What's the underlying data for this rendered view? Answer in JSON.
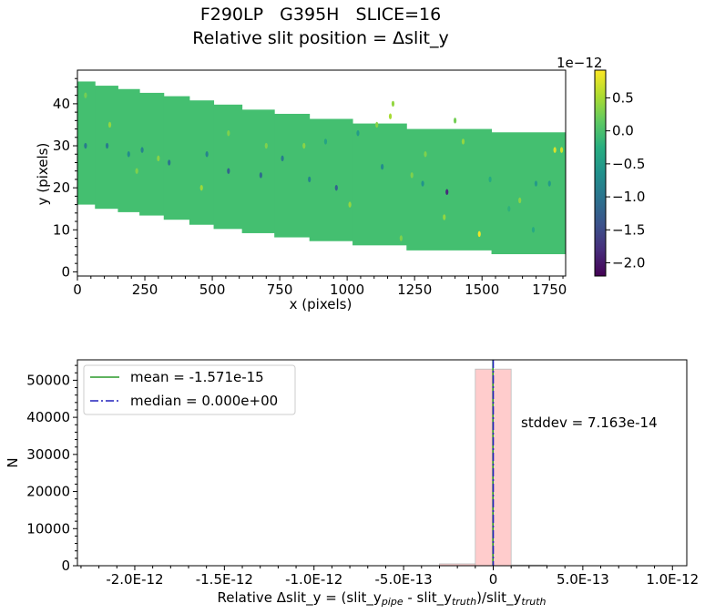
{
  "figure": {
    "title_line1": "F290LP   G395H   SLICE=16",
    "title_line2": "Relative slit position = Δslit_y"
  },
  "chart_data": [
    {
      "type": "heatmap",
      "xlabel": "x (pixels)",
      "ylabel": "y (pixels)",
      "xlim": [
        0,
        1810
      ],
      "ylim": [
        -1,
        48
      ],
      "xticks": [
        0,
        250,
        500,
        750,
        1000,
        1250,
        1500,
        1750
      ],
      "yticks": [
        0,
        10,
        20,
        30,
        40
      ],
      "colormap": "viridis",
      "background_color": "#44bf70",
      "colorbar": {
        "offset_text": "1e−12",
        "range": [
          -2.2,
          0.92
        ],
        "ticks": [
          0.5,
          0.0,
          -0.5,
          -1.0,
          -1.5,
          -2.0
        ],
        "tick_labels": [
          "0.5",
          "0.0",
          "−0.5",
          "−1.0",
          "−1.5",
          "−2.0"
        ]
      },
      "strip_steps": [
        {
          "x0": 0,
          "x1": 65,
          "ytop": 45.3,
          "ybot": 16.0
        },
        {
          "x0": 65,
          "x1": 150,
          "ytop": 44.3,
          "ybot": 15.0
        },
        {
          "x0": 150,
          "x1": 230,
          "ytop": 43.5,
          "ybot": 14.2
        },
        {
          "x0": 230,
          "x1": 320,
          "ytop": 42.6,
          "ybot": 13.4
        },
        {
          "x0": 320,
          "x1": 415,
          "ytop": 41.8,
          "ybot": 12.4
        },
        {
          "x0": 415,
          "x1": 505,
          "ytop": 40.8,
          "ybot": 11.2
        },
        {
          "x0": 505,
          "x1": 610,
          "ytop": 39.8,
          "ybot": 10.2
        },
        {
          "x0": 610,
          "x1": 730,
          "ytop": 38.6,
          "ybot": 9.2
        },
        {
          "x0": 730,
          "x1": 860,
          "ytop": 37.6,
          "ybot": 8.2
        },
        {
          "x0": 860,
          "x1": 1020,
          "ytop": 36.4,
          "ybot": 7.3
        },
        {
          "x0": 1020,
          "x1": 1220,
          "ytop": 35.3,
          "ybot": 6.3
        },
        {
          "x0": 1220,
          "x1": 1535,
          "ytop": 34.0,
          "ybot": 5.1
        },
        {
          "x0": 1535,
          "x1": 1810,
          "ytop": 33.2,
          "ybot": 4.2
        }
      ],
      "outlier_pixels": [
        {
          "x": 120,
          "y": 35,
          "v": 0.4
        },
        {
          "x": 300,
          "y": 27,
          "v": 0.35
        },
        {
          "x": 460,
          "y": 20,
          "v": 0.45
        },
        {
          "x": 560,
          "y": 33,
          "v": 0.3
        },
        {
          "x": 840,
          "y": 30,
          "v": 0.35
        },
        {
          "x": 1010,
          "y": 16,
          "v": 0.4
        },
        {
          "x": 1110,
          "y": 35,
          "v": 0.35
        },
        {
          "x": 1160,
          "y": 37,
          "v": 0.5
        },
        {
          "x": 1290,
          "y": 28,
          "v": 0.3
        },
        {
          "x": 1360,
          "y": 13,
          "v": 0.4
        },
        {
          "x": 1430,
          "y": 31,
          "v": 0.4
        },
        {
          "x": 1490,
          "y": 9,
          "v": 0.85
        },
        {
          "x": 1640,
          "y": 17,
          "v": 0.35
        },
        {
          "x": 1770,
          "y": 29,
          "v": 0.75
        },
        {
          "x": 1795,
          "y": 29,
          "v": 0.7
        },
        {
          "x": 1170,
          "y": 40,
          "v": 0.4
        },
        {
          "x": 1400,
          "y": 36,
          "v": 0.25
        },
        {
          "x": 700,
          "y": 30,
          "v": 0.3
        },
        {
          "x": 220,
          "y": 24,
          "v": 0.3
        },
        {
          "x": 30,
          "y": 42,
          "v": 0.25
        },
        {
          "x": 1200,
          "y": 8,
          "v": 0.3
        },
        {
          "x": 1240,
          "y": 23,
          "v": 0.3
        },
        {
          "x": 110,
          "y": 30,
          "v": -0.9
        },
        {
          "x": 190,
          "y": 28,
          "v": -0.7
        },
        {
          "x": 240,
          "y": 29,
          "v": -0.8
        },
        {
          "x": 340,
          "y": 26,
          "v": -1.0
        },
        {
          "x": 480,
          "y": 28,
          "v": -0.8
        },
        {
          "x": 560,
          "y": 24,
          "v": -1.2
        },
        {
          "x": 680,
          "y": 23,
          "v": -1.1
        },
        {
          "x": 760,
          "y": 27,
          "v": -0.9
        },
        {
          "x": 860,
          "y": 22,
          "v": -0.8
        },
        {
          "x": 960,
          "y": 20,
          "v": -1.2
        },
        {
          "x": 1040,
          "y": 33,
          "v": -0.5
        },
        {
          "x": 1130,
          "y": 25,
          "v": -0.7
        },
        {
          "x": 1280,
          "y": 21,
          "v": -0.6
        },
        {
          "x": 1370,
          "y": 19,
          "v": -1.8
        },
        {
          "x": 1530,
          "y": 22,
          "v": -0.3
        },
        {
          "x": 1700,
          "y": 21,
          "v": -0.5
        },
        {
          "x": 1750,
          "y": 21,
          "v": -0.5
        },
        {
          "x": 1690,
          "y": 10,
          "v": -0.3
        },
        {
          "x": 30,
          "y": 30,
          "v": -0.9
        },
        {
          "x": 1600,
          "y": 15,
          "v": -0.2
        },
        {
          "x": 920,
          "y": 31,
          "v": -0.4
        }
      ]
    },
    {
      "type": "bar",
      "subtype": "histogram",
      "ylabel": "N",
      "xlabel_parts": {
        "prefix": "Relative Δslit_y = (slit_y",
        "sub1": "pipe",
        "mid": " - slit_y",
        "sub2": "truth",
        "mid2": ")/slit_y",
        "sub3": "truth"
      },
      "xlim": [
        -2.32e-12,
        1.08e-12
      ],
      "ylim": [
        0,
        55500
      ],
      "xticks": [
        -2e-12,
        -1.5e-12,
        -1e-12,
        -5e-13,
        0,
        5e-13,
        1e-12
      ],
      "xtick_labels": [
        "-2.0E-12",
        "-1.5E-12",
        "-1.0E-12",
        "-5.0E-13",
        "0",
        "5.0E-13",
        "1.0E-12"
      ],
      "yticks": [
        0,
        10000,
        20000,
        30000,
        40000,
        50000
      ],
      "ytick_labels": [
        "0",
        "10000",
        "20000",
        "30000",
        "40000",
        "50000"
      ],
      "bar_color": "#ffcccc",
      "bins": [
        {
          "x0": -3e-13,
          "x1": -1e-13,
          "count": 500
        },
        {
          "x0": -1e-13,
          "x1": 1e-13,
          "count": 53000
        },
        {
          "x0": 1e-13,
          "x1": 3e-13,
          "count": 200
        }
      ],
      "mean": -1.571e-15,
      "median": 0.0,
      "mean_color": "#2a9a2a",
      "median_color": "#2222bb",
      "legend": {
        "position": "upper left",
        "mean_label": "mean = -1.571e-15",
        "median_label": "median = 0.000e+00"
      },
      "annotation": "stddev = 7.163e-14"
    }
  ]
}
